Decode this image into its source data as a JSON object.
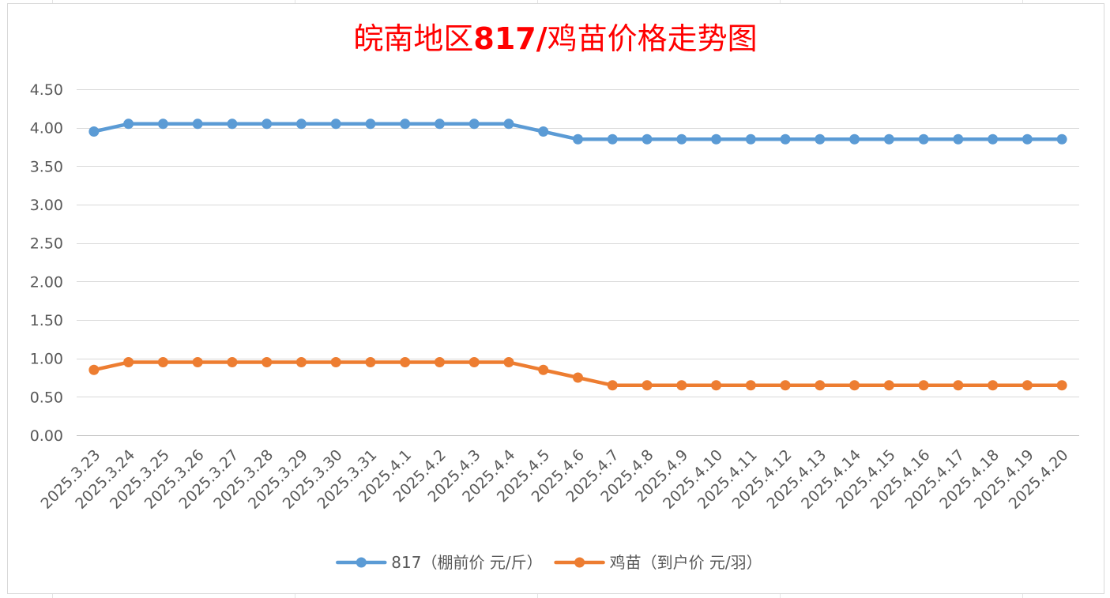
{
  "chart_data": {
    "type": "line",
    "title": "皖南地区817/鸡苗价格走势图",
    "title_color": "#FF0000",
    "categories": [
      "2025.3.23",
      "2025.3.24",
      "2025.3.25",
      "2025.3.26",
      "2025.3.27",
      "2025.3.28",
      "2025.3.29",
      "2025.3.30",
      "2025.3.31",
      "2025.4.1",
      "2025.4.2",
      "2025.4.3",
      "2025.4.4",
      "2025.4.5",
      "2025.4.6",
      "2025.4.7",
      "2025.4.8",
      "2025.4.9",
      "2025.4.10",
      "2025.4.11",
      "2025.4.12",
      "2025.4.13",
      "2025.4.14",
      "2025.4.15",
      "2025.4.16",
      "2025.4.17",
      "2025.4.18",
      "2025.4.19",
      "2025.4.20"
    ],
    "series": [
      {
        "name": "817（棚前价 元/斤）",
        "color": "#5B9BD5",
        "values": [
          3.95,
          4.05,
          4.05,
          4.05,
          4.05,
          4.05,
          4.05,
          4.05,
          4.05,
          4.05,
          4.05,
          4.05,
          4.05,
          3.95,
          3.85,
          3.85,
          3.85,
          3.85,
          3.85,
          3.85,
          3.85,
          3.85,
          3.85,
          3.85,
          3.85,
          3.85,
          3.85,
          3.85,
          3.85
        ]
      },
      {
        "name": "鸡苗（到户价 元/羽）",
        "color": "#ED7D31",
        "values": [
          0.85,
          0.95,
          0.95,
          0.95,
          0.95,
          0.95,
          0.95,
          0.95,
          0.95,
          0.95,
          0.95,
          0.95,
          0.95,
          0.85,
          0.75,
          0.65,
          0.65,
          0.65,
          0.65,
          0.65,
          0.65,
          0.65,
          0.65,
          0.65,
          0.65,
          0.65,
          0.65,
          0.65,
          0.65
        ]
      }
    ],
    "ylim": [
      0,
      4.5
    ],
    "y_tick_step": 0.5,
    "y_tick_labels": [
      "0.00",
      "0.50",
      "1.00",
      "1.50",
      "2.00",
      "2.50",
      "3.00",
      "3.50",
      "4.00",
      "4.50"
    ],
    "grid": true,
    "legend": "bottom"
  }
}
